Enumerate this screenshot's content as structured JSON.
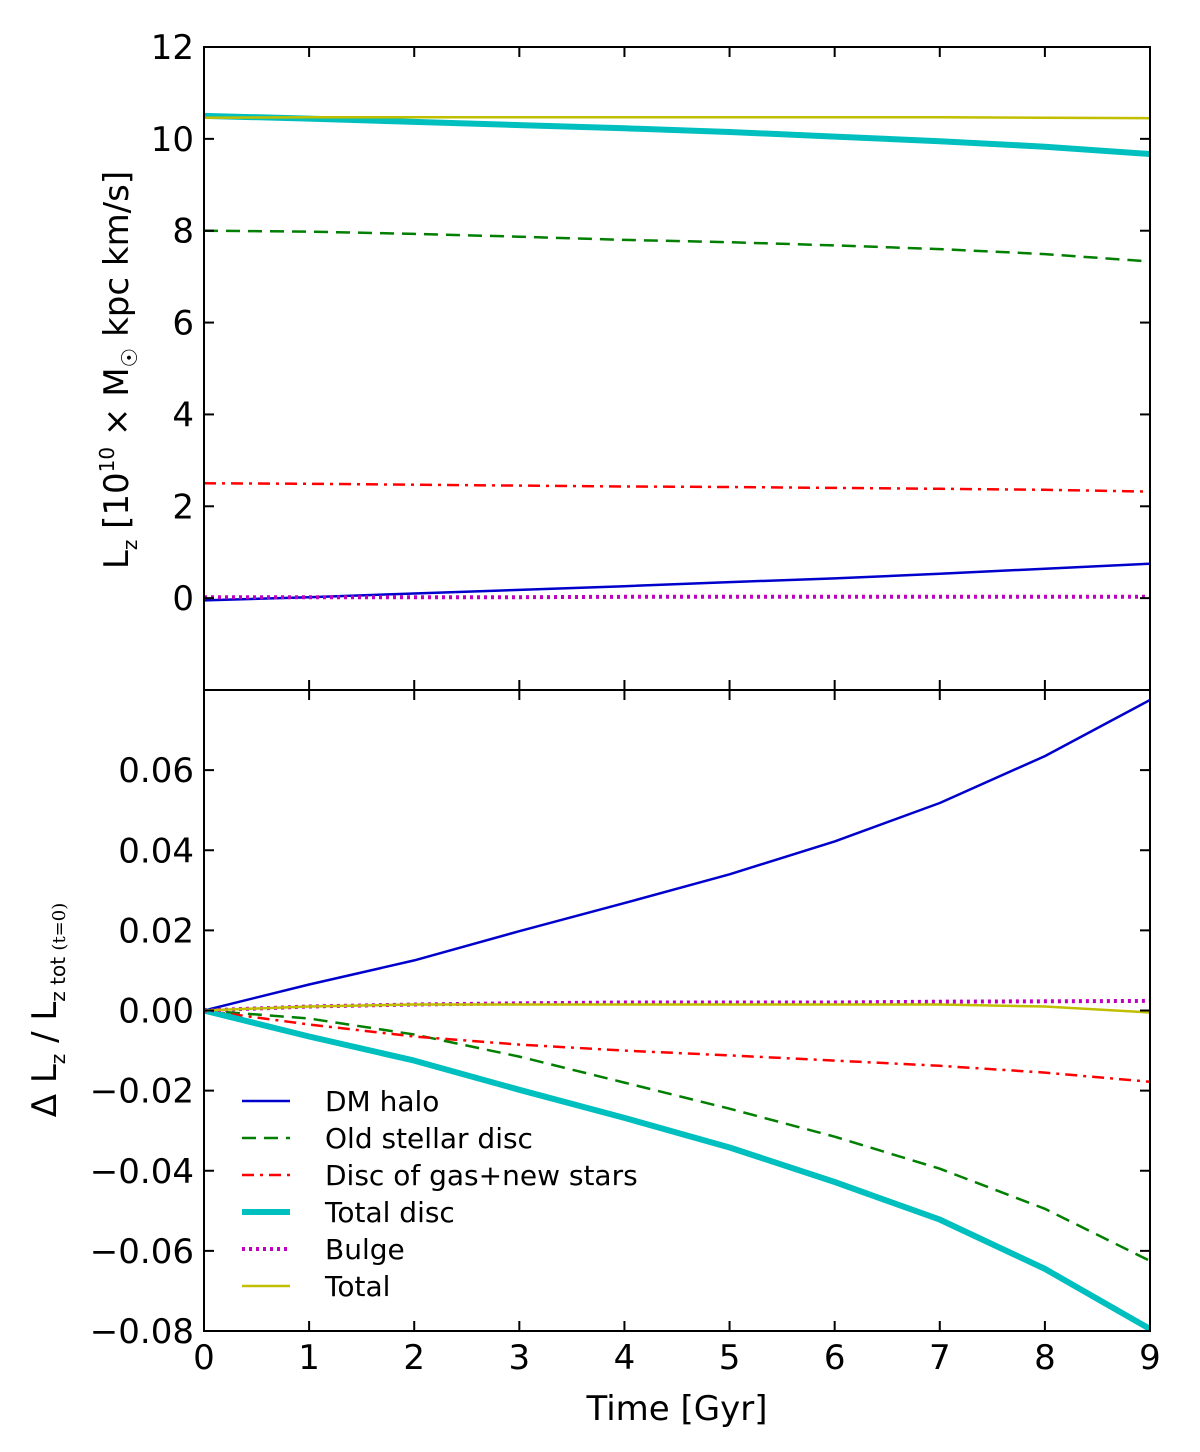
{
  "chart_data": [
    {
      "type": "line",
      "panel": "top",
      "xlabel": "",
      "ylabel_parts": {
        "base": "L",
        "sub": "z",
        "open": " [10",
        "sup": "10",
        "mid": " × M",
        "sub2": "☉",
        "tail": " kpc km/s]"
      },
      "xlim": [
        0,
        9
      ],
      "ylim": [
        -2,
        12
      ],
      "yticks": [
        0,
        2,
        4,
        6,
        8,
        10,
        12
      ],
      "ytick_labels": [
        "0",
        "2",
        "4",
        "6",
        "8",
        "10",
        "12"
      ],
      "x": [
        0,
        1,
        2,
        3,
        4,
        5,
        6,
        7,
        8,
        9
      ],
      "series": [
        {
          "name": "DM halo",
          "color": "#0000cc",
          "dash": "solid",
          "width": 2.5,
          "values": [
            -0.05,
            0.02,
            0.1,
            0.18,
            0.26,
            0.35,
            0.43,
            0.53,
            0.64,
            0.75
          ]
        },
        {
          "name": "Old stellar disc",
          "color": "#007f00",
          "dash": "dashed",
          "width": 2.5,
          "values": [
            8.0,
            7.98,
            7.93,
            7.87,
            7.8,
            7.75,
            7.68,
            7.6,
            7.49,
            7.33
          ]
        },
        {
          "name": "Disc of gas+new stars",
          "color": "#ff0000",
          "dash": "dashdot",
          "width": 2.5,
          "values": [
            2.5,
            2.49,
            2.47,
            2.45,
            2.43,
            2.42,
            2.4,
            2.38,
            2.36,
            2.32
          ]
        },
        {
          "name": "Total disc",
          "color": "#00bfbf",
          "dash": "solid",
          "width": 6,
          "values": [
            10.5,
            10.44,
            10.37,
            10.3,
            10.23,
            10.15,
            10.05,
            9.95,
            9.83,
            9.67
          ]
        },
        {
          "name": "Bulge",
          "color": "#bf00bf",
          "dash": "dotted",
          "width": 4,
          "values": [
            0.02,
            0.02,
            0.02,
            0.02,
            0.03,
            0.03,
            0.03,
            0.03,
            0.03,
            0.03
          ]
        },
        {
          "name": "Total",
          "color": "#bfbf00",
          "dash": "solid",
          "width": 2.5,
          "values": [
            10.46,
            10.47,
            10.47,
            10.47,
            10.47,
            10.47,
            10.47,
            10.47,
            10.46,
            10.45
          ]
        }
      ]
    },
    {
      "type": "line",
      "panel": "bottom",
      "xlabel": "Time [Gyr]",
      "ylabel_parts": {
        "pre": "Δ L",
        "sub": "z",
        "mid": " / L",
        "sub2": "z",
        "tail": " tot ",
        "sub3": "(t=0)"
      },
      "xlim": [
        0,
        9
      ],
      "ylim": [
        -0.08,
        0.08
      ],
      "xticks": [
        0,
        1,
        2,
        3,
        4,
        5,
        6,
        7,
        8,
        9
      ],
      "xtick_labels": [
        "0",
        "1",
        "2",
        "3",
        "4",
        "5",
        "6",
        "7",
        "8",
        "9"
      ],
      "yticks": [
        -0.08,
        -0.06,
        -0.04,
        -0.02,
        0.0,
        0.02,
        0.04,
        0.06
      ],
      "ytick_labels": [
        "−0.08",
        "−0.06",
        "−0.04",
        "−0.02",
        "0.00",
        "0.02",
        "0.04",
        "0.06"
      ],
      "x": [
        0,
        1,
        2,
        3,
        4,
        5,
        6,
        7,
        8,
        9
      ],
      "series": [
        {
          "name": "DM halo",
          "color": "#0000cc",
          "dash": "solid",
          "width": 2.5,
          "values": [
            0.0,
            0.0065,
            0.0125,
            0.0198,
            0.0268,
            0.034,
            0.0422,
            0.0518,
            0.0635,
            0.0775
          ]
        },
        {
          "name": "Old stellar disc",
          "color": "#007f00",
          "dash": "dashed",
          "width": 2.5,
          "values": [
            0.0,
            -0.002,
            -0.006,
            -0.0115,
            -0.018,
            -0.0245,
            -0.0315,
            -0.0395,
            -0.0495,
            -0.0625
          ]
        },
        {
          "name": "Disc of gas+new stars",
          "color": "#ff0000",
          "dash": "dashdot",
          "width": 2.5,
          "values": [
            0.0,
            -0.0035,
            -0.0065,
            -0.0085,
            -0.01,
            -0.0112,
            -0.0125,
            -0.0138,
            -0.0155,
            -0.0178
          ]
        },
        {
          "name": "Total disc",
          "color": "#00bfbf",
          "dash": "solid",
          "width": 6,
          "values": [
            0.0,
            -0.0065,
            -0.0125,
            -0.0198,
            -0.0268,
            -0.0342,
            -0.0428,
            -0.0522,
            -0.0645,
            -0.0795
          ]
        },
        {
          "name": "Bulge",
          "color": "#bf00bf",
          "dash": "dotted",
          "width": 4,
          "values": [
            0.0,
            0.001,
            0.0015,
            0.0018,
            0.002,
            0.002,
            0.002,
            0.0022,
            0.0023,
            0.0024
          ]
        },
        {
          "name": "Total",
          "color": "#bfbf00",
          "dash": "solid",
          "width": 2.5,
          "values": [
            0.0,
            0.001,
            0.0015,
            0.0015,
            0.0015,
            0.0015,
            0.0015,
            0.0015,
            0.001,
            -0.0005
          ]
        }
      ],
      "legend": {
        "placement": "lower-left",
        "entries": [
          "DM halo",
          "Old stellar disc",
          "Disc of gas+new stars",
          "Total disc",
          "Bulge",
          "Total"
        ]
      }
    }
  ]
}
